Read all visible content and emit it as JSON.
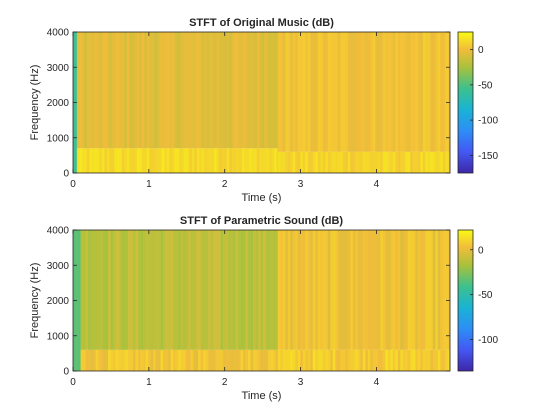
{
  "chart_data": [
    {
      "type": "heatmap",
      "title": "STFT of Original Music (dB)",
      "xlabel": "Time (s)",
      "ylabel": "Frequency (Hz)",
      "xlim": [
        0,
        4.97
      ],
      "ylim": [
        0,
        4000
      ],
      "xticks": [
        0,
        1,
        2,
        3,
        4
      ],
      "xtick_labels": [
        "0",
        "1",
        "2",
        "3",
        "4"
      ],
      "yticks": [
        0,
        1000,
        2000,
        3000,
        4000
      ],
      "ytick_labels": [
        "0",
        "1000",
        "2000",
        "3000",
        "4000"
      ],
      "colorbar": {
        "range": [
          -175,
          25
        ],
        "ticks": [
          0,
          -50,
          -100,
          -150
        ],
        "tick_labels": [
          "0",
          "-50",
          "-100",
          "-150"
        ],
        "colormap": "parula"
      },
      "regions": [
        {
          "t_start": 0,
          "t_end": 0.05,
          "f_start": 0,
          "f_end": 4000,
          "db": -60
        },
        {
          "t_start": 0.05,
          "t_end": 2.7,
          "f_start": 0,
          "f_end": 700,
          "db": 12
        },
        {
          "t_start": 0.05,
          "t_end": 2.7,
          "f_start": 700,
          "f_end": 4000,
          "db": -5
        },
        {
          "t_start": 2.7,
          "t_end": 4.97,
          "f_start": 0,
          "f_end": 600,
          "db": 10
        },
        {
          "t_start": 2.7,
          "t_end": 4.97,
          "f_start": 600,
          "f_end": 4000,
          "db": 2
        }
      ]
    },
    {
      "type": "heatmap",
      "title": "STFT of Parametric Sound (dB)",
      "xlabel": "Time (s)",
      "ylabel": "Frequency (Hz)",
      "xlim": [
        0,
        4.97
      ],
      "ylim": [
        0,
        4000
      ],
      "xticks": [
        0,
        1,
        2,
        3,
        4
      ],
      "xtick_labels": [
        "0",
        "1",
        "2",
        "3",
        "4"
      ],
      "yticks": [
        0,
        1000,
        2000,
        3000,
        4000
      ],
      "ytick_labels": [
        "0",
        "1000",
        "2000",
        "3000",
        "4000"
      ],
      "colorbar": {
        "range": [
          -135,
          22
        ],
        "ticks": [
          0,
          -50,
          -100
        ],
        "tick_labels": [
          "0",
          "-50",
          "-100"
        ],
        "colormap": "parula"
      },
      "regions": [
        {
          "t_start": 0,
          "t_end": 0.1,
          "f_start": 0,
          "f_end": 4000,
          "db": -35
        },
        {
          "t_start": 0.1,
          "t_end": 2.7,
          "f_start": 0,
          "f_end": 600,
          "db": 5
        },
        {
          "t_start": 0.1,
          "t_end": 2.7,
          "f_start": 600,
          "f_end": 4000,
          "db": -12
        },
        {
          "t_start": 2.7,
          "t_end": 4.97,
          "f_start": 0,
          "f_end": 600,
          "db": 8
        },
        {
          "t_start": 2.7,
          "t_end": 4.97,
          "f_start": 600,
          "f_end": 4000,
          "db": 3
        }
      ]
    }
  ]
}
